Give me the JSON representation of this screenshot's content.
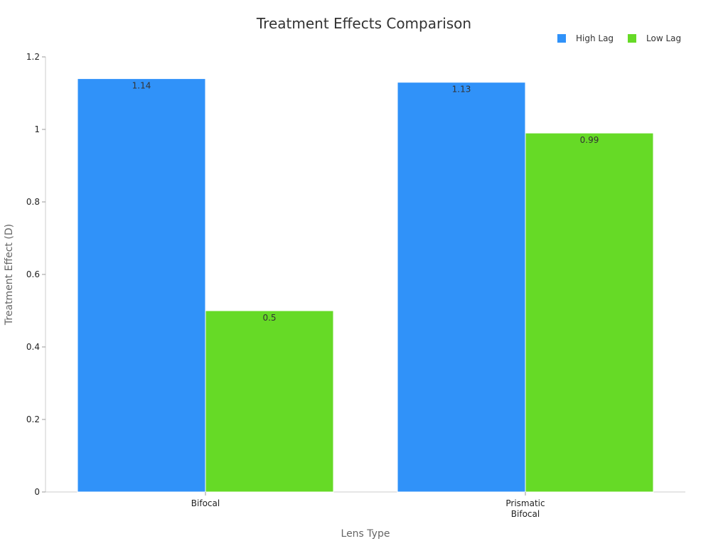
{
  "chart_data": {
    "type": "bar",
    "title": "Treatment Effects Comparison",
    "xlabel": "Lens Type",
    "ylabel": "Treatment Effect (D)",
    "categories": [
      [
        "Bifocal"
      ],
      [
        "Prismatic",
        "Bifocal"
      ]
    ],
    "series": [
      {
        "name": "High Lag",
        "color": "#3092F9",
        "values": [
          1.14,
          1.13
        ]
      },
      {
        "name": "Low Lag",
        "color": "#66DA26",
        "values": [
          0.5,
          0.99
        ]
      }
    ],
    "ylim": [
      0,
      1.2
    ],
    "yticks": [
      "0",
      "0.2",
      "0.4",
      "0.6",
      "0.8",
      "1",
      "1.2"
    ],
    "data_labels": [
      [
        "1.14",
        "1.13"
      ],
      [
        "0.5",
        "0.99"
      ]
    ],
    "legend_position": "top-right",
    "grid": false
  }
}
